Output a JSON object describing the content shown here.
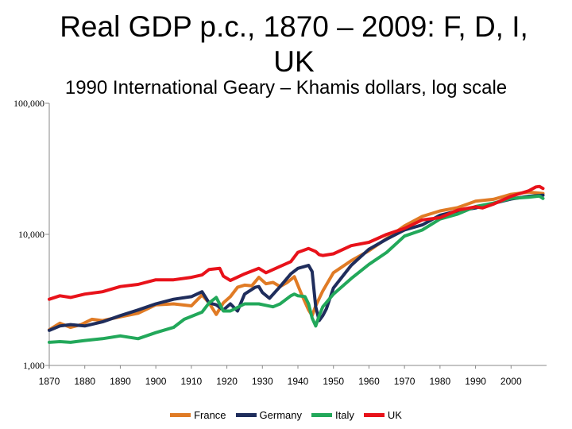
{
  "title": "Real GDP p.c., 1870 – 2009: F, D, I, UK",
  "subtitle": "1990 International Geary – Khamis dollars, log scale",
  "colors": {
    "France": "#e07b25",
    "Germany": "#1f2d5c",
    "Italy": "#22a85a",
    "UK": "#e8121a"
  },
  "chart_data": {
    "type": "line",
    "title": "Real GDP p.c., 1870 – 2009: F, D, I, UK",
    "subtitle": "1990 International Geary – Khamis dollars, log scale",
    "yscale": "log",
    "ylim": [
      1000,
      100000
    ],
    "xlim": [
      1870,
      2010
    ],
    "y_tick_values": [
      1000,
      10000,
      100000
    ],
    "y_tick_labels": [
      "1,000",
      "10,000",
      "100,000"
    ],
    "x_ticks": [
      "1870",
      "1880",
      "1890",
      "1900",
      "1910",
      "1920",
      "1930",
      "1940",
      "1950",
      "1960",
      "1970",
      "1980",
      "1990",
      "2000"
    ],
    "legend": [
      "France",
      "Germany",
      "Italy",
      "UK"
    ],
    "legend_position": "bottom",
    "series": [
      {
        "name": "France",
        "x": [
          1870,
          1873,
          1876,
          1879,
          1882,
          1885,
          1890,
          1895,
          1900,
          1905,
          1910,
          1913,
          1915,
          1917,
          1919,
          1921,
          1923,
          1925,
          1927,
          1929,
          1931,
          1933,
          1935,
          1937,
          1939,
          1941,
          1943,
          1944,
          1945,
          1947,
          1950,
          1955,
          1960,
          1965,
          1970,
          1975,
          1980,
          1985,
          1990,
          1995,
          2000,
          2005,
          2009
        ],
        "y": [
          1870,
          2100,
          1950,
          2050,
          2250,
          2200,
          2350,
          2500,
          2900,
          2950,
          2850,
          3450,
          3000,
          2450,
          3000,
          3350,
          3950,
          4100,
          4050,
          4700,
          4200,
          4300,
          4000,
          4300,
          4750,
          3500,
          2650,
          2400,
          2850,
          3700,
          5100,
          6300,
          7500,
          9300,
          11600,
          13700,
          15100,
          16000,
          17900,
          18500,
          20200,
          21000,
          20500
        ]
      },
      {
        "name": "Germany",
        "x": [
          1870,
          1873,
          1876,
          1880,
          1885,
          1890,
          1895,
          1900,
          1905,
          1910,
          1913,
          1915,
          1917,
          1919,
          1921,
          1923,
          1925,
          1928,
          1929,
          1930,
          1932,
          1935,
          1938,
          1940,
          1942,
          1943,
          1944,
          1945,
          1946,
          1947,
          1948,
          1950,
          1955,
          1960,
          1965,
          1970,
          1975,
          1980,
          1985,
          1990,
          1992,
          1995,
          2000,
          2005,
          2009
        ],
        "y": [
          1850,
          2000,
          2050,
          2000,
          2150,
          2400,
          2650,
          2950,
          3200,
          3350,
          3650,
          3000,
          2900,
          2650,
          2950,
          2600,
          3500,
          3950,
          4000,
          3600,
          3250,
          4000,
          5000,
          5500,
          5700,
          5800,
          5200,
          2800,
          2200,
          2400,
          2700,
          3900,
          5800,
          7700,
          9200,
          10800,
          11800,
          14000,
          15100,
          15900,
          16500,
          17200,
          18600,
          19500,
          19900
        ]
      },
      {
        "name": "Italy",
        "x": [
          1870,
          1873,
          1876,
          1880,
          1885,
          1890,
          1895,
          1900,
          1905,
          1908,
          1913,
          1915,
          1917,
          1919,
          1921,
          1925,
          1929,
          1933,
          1935,
          1938,
          1939,
          1940,
          1942,
          1943,
          1944,
          1945,
          1946,
          1947,
          1950,
          1955,
          1960,
          1965,
          1970,
          1975,
          1980,
          1985,
          1990,
          1995,
          2000,
          2005,
          2008,
          2009
        ],
        "y": [
          1500,
          1520,
          1500,
          1550,
          1600,
          1680,
          1600,
          1780,
          1950,
          2250,
          2550,
          3000,
          3300,
          2600,
          2600,
          2950,
          2950,
          2800,
          2950,
          3400,
          3500,
          3400,
          3350,
          2950,
          2300,
          2000,
          2400,
          2800,
          3500,
          4600,
          5900,
          7300,
          9700,
          10800,
          13100,
          14300,
          16300,
          17300,
          18800,
          19200,
          19600,
          18800
        ]
      },
      {
        "name": "UK",
        "x": [
          1870,
          1873,
          1876,
          1880,
          1885,
          1890,
          1895,
          1900,
          1905,
          1910,
          1913,
          1915,
          1918,
          1919,
          1921,
          1925,
          1929,
          1931,
          1935,
          1938,
          1940,
          1943,
          1945,
          1946,
          1947,
          1950,
          1955,
          1960,
          1965,
          1970,
          1975,
          1980,
          1985,
          1990,
          1992,
          1995,
          2000,
          2005,
          2007,
          2008,
          2009
        ],
        "y": [
          3200,
          3400,
          3300,
          3500,
          3650,
          4000,
          4150,
          4500,
          4500,
          4700,
          4900,
          5400,
          5500,
          4800,
          4450,
          5000,
          5500,
          5100,
          5700,
          6200,
          7300,
          7800,
          7400,
          7000,
          6900,
          7100,
          8200,
          8700,
          10000,
          11100,
          12900,
          13400,
          15300,
          16200,
          15900,
          17000,
          19500,
          21500,
          23000,
          23200,
          22400
        ]
      }
    ]
  }
}
